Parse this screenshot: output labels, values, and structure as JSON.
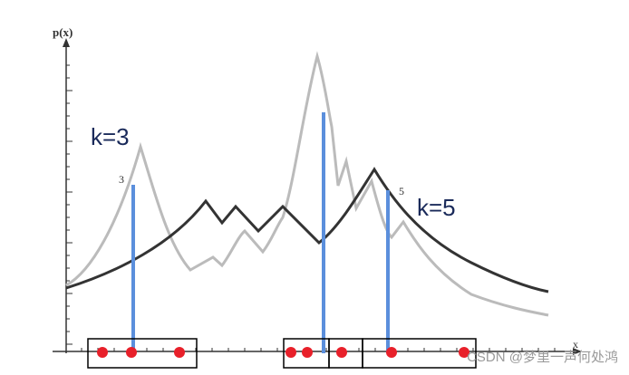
{
  "axis_label_y": "p(x)",
  "axis_label_x": "x",
  "left_label": "k=3",
  "left_marker": "3",
  "right_marker": "5",
  "right_label": "k=5",
  "watermark": "CSDN @梦里一声何处鸿"
}
